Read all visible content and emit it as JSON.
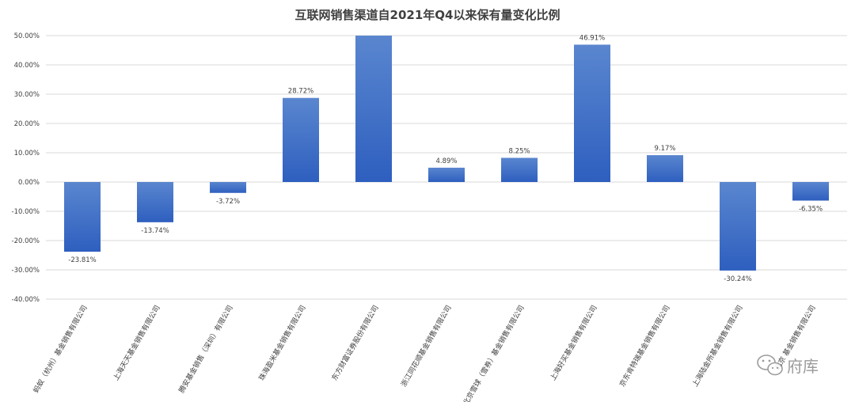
{
  "chart_data": {
    "type": "bar",
    "title": "互联网销售渠道自2021年Q4以来保有量变化比例",
    "xlabel": "",
    "ylabel": "",
    "ylim": [
      -40,
      50
    ],
    "yticks": [
      50,
      40,
      30,
      20,
      10,
      0,
      -10,
      -20,
      -30,
      -40
    ],
    "ytick_labels": [
      "50.00%",
      "40.00%",
      "30.00%",
      "20.00%",
      "10.00%",
      "0.00%",
      "-10.00%",
      "-20.00%",
      "-30.00%",
      "-40.00%"
    ],
    "grid": true,
    "legend": "none",
    "bar_color_top": "#5a86cf",
    "bar_color_bottom": "#2e5fbf",
    "categories": [
      "蚂蚁（杭州）基金销售有限公司",
      "上海天天基金销售有限公司",
      "腾安基金销售（深圳）有限公司",
      "珠海盈米基金销售有限公司",
      "东方财富证券股份有限公司",
      "浙江同花顺基金销售有限公司",
      "北京雪球（雪券）基金销售有限公司",
      "上海好买基金销售有限公司",
      "京东肯特瑞基金销售有限公司",
      "上海陆金所基金销售有限公司",
      "北京  基金销售有限公司"
    ],
    "values": [
      -23.81,
      -13.74,
      -3.72,
      28.72,
      50,
      4.89,
      8.25,
      46.91,
      9.17,
      -30.24,
      -6.35
    ],
    "data_labels": [
      "-23.81%",
      "-13.74%",
      "-3.72%",
      "28.72%",
      "",
      "4.89%",
      "8.25%",
      "46.91%",
      "9.17%",
      "-30.24%",
      "-6.35%"
    ]
  },
  "watermark": {
    "text": "府库",
    "icon": "wechat-icon"
  }
}
